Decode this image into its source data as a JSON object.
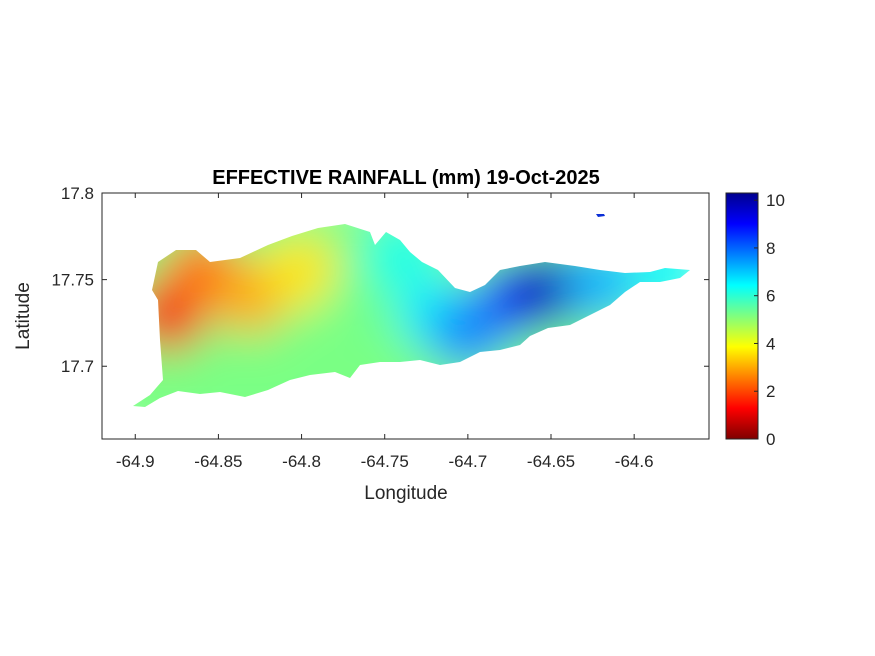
{
  "chart_data": {
    "type": "heatmap",
    "title": "EFFECTIVE RAINFALL (mm) 19-Oct-2025",
    "xlabel": "Longitude",
    "ylabel": "Latitude",
    "xlim": [
      -64.92,
      -64.555
    ],
    "ylim": [
      17.658,
      17.8
    ],
    "x_ticks": [
      -64.9,
      -64.85,
      -64.8,
      -64.75,
      -64.7,
      -64.65,
      -64.6
    ],
    "x_tick_labels": [
      "-64.9",
      "-64.85",
      "-64.8",
      "-64.75",
      "-64.7",
      "-64.65",
      "-64.6"
    ],
    "y_ticks": [
      17.7,
      17.75,
      17.8
    ],
    "y_tick_labels": [
      "17.7",
      "17.75",
      "17.8"
    ],
    "colorbar": {
      "colormap": "jet",
      "clim": [
        0,
        10.3
      ],
      "ticks": [
        0,
        2,
        4,
        6,
        8,
        10
      ],
      "tick_labels": [
        "0",
        "2",
        "4",
        "6",
        "8",
        "10"
      ],
      "stops": [
        "#7f0000",
        "#ff0000",
        "#ff7f00",
        "#ffff00",
        "#7fff7f",
        "#00ffff",
        "#007fff",
        "#0000ff",
        "#00008f"
      ]
    },
    "field_samples": [
      {
        "lon": -64.88,
        "lat": 17.73,
        "value": 1.2
      },
      {
        "lon": -64.86,
        "lat": 17.755,
        "value": 2.4
      },
      {
        "lon": -64.83,
        "lat": 17.74,
        "value": 3.0
      },
      {
        "lon": -64.8,
        "lat": 17.755,
        "value": 3.6
      },
      {
        "lon": -64.8,
        "lat": 17.71,
        "value": 5.2
      },
      {
        "lon": -64.76,
        "lat": 17.74,
        "value": 5.3
      },
      {
        "lon": -64.74,
        "lat": 17.765,
        "value": 6.2
      },
      {
        "lon": -64.72,
        "lat": 17.73,
        "value": 6.6
      },
      {
        "lon": -64.7,
        "lat": 17.72,
        "value": 7.6
      },
      {
        "lon": -64.67,
        "lat": 17.74,
        "value": 8.6
      },
      {
        "lon": -64.65,
        "lat": 17.745,
        "value": 9.8
      },
      {
        "lon": -64.62,
        "lat": 17.748,
        "value": 7.2
      },
      {
        "lon": -64.58,
        "lat": 17.755,
        "value": 6.5
      }
    ]
  }
}
